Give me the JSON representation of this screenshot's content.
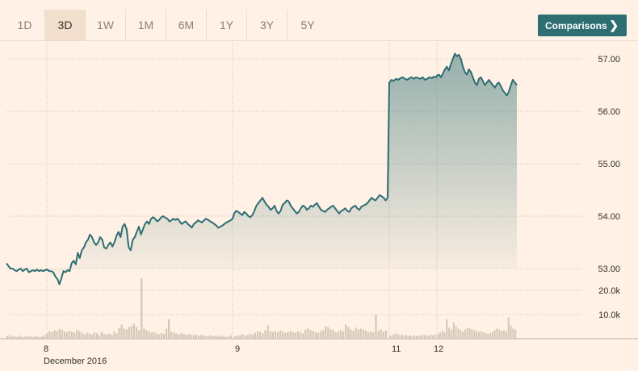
{
  "range_tabs": [
    {
      "label": "1D",
      "active": false
    },
    {
      "label": "3D",
      "active": true
    },
    {
      "label": "1W",
      "active": false
    },
    {
      "label": "1M",
      "active": false
    },
    {
      "label": "6M",
      "active": false
    },
    {
      "label": "1Y",
      "active": false
    },
    {
      "label": "3Y",
      "active": false
    },
    {
      "label": "5Y",
      "active": false
    }
  ],
  "comparisons": {
    "label": "Comparisons",
    "icon": "chevron-right-icon"
  },
  "colors": {
    "line": "#2e6e72",
    "fill": "#2e6e72",
    "volume": "#d6c6b6",
    "grid": "#cfc2b5"
  },
  "chart_data": {
    "type": "line",
    "price_axis": {
      "ticks": [
        "57.00",
        "56.00",
        "55.00",
        "54.00",
        "53.00"
      ],
      "range": [
        52.85,
        57.3
      ]
    },
    "volume_axis": {
      "ticks": [
        "20.0k",
        "10.0k"
      ],
      "range": [
        0,
        27000
      ]
    },
    "x_labels": [
      {
        "label": "8",
        "sub": "December 2016"
      },
      {
        "label": "9",
        "sub": ""
      },
      {
        "label": "11",
        "sub": ""
      },
      {
        "label": "12",
        "sub": ""
      }
    ],
    "sessions": [
      {
        "day": "8",
        "prices": [
          53.1,
          53.05,
          53.0,
          53.0,
          52.97,
          52.95,
          52.98,
          53.0,
          52.95,
          52.98,
          53.0,
          52.93,
          52.95,
          52.97,
          52.95,
          52.98,
          52.95,
          52.97,
          52.95,
          52.97,
          52.98,
          52.95,
          52.95,
          52.93,
          52.85,
          52.8,
          52.7,
          52.82,
          52.95,
          52.93,
          52.97,
          52.95,
          53.1,
          53.15,
          53.08,
          53.3,
          53.2,
          53.35,
          53.4,
          53.5,
          53.55,
          53.65,
          53.6,
          53.5,
          53.45,
          53.5,
          53.6,
          53.55,
          53.4,
          53.38,
          53.45,
          53.5,
          53.42,
          53.5,
          53.62,
          53.7,
          53.6,
          53.8,
          53.85,
          53.75,
          53.4,
          53.35,
          53.55,
          53.6,
          53.7,
          53.8,
          53.65,
          53.75,
          53.85,
          53.9,
          53.85,
          53.95,
          53.98,
          53.95,
          53.9,
          53.93,
          53.98,
          54.0,
          53.97,
          53.95,
          53.9,
          53.92,
          53.95,
          53.93,
          53.95,
          53.9,
          53.85,
          53.88,
          53.9,
          53.85,
          53.82,
          53.78,
          53.85,
          53.88,
          53.92,
          53.9,
          53.88,
          53.92,
          53.95,
          53.93,
          53.9,
          53.88,
          53.85,
          53.82,
          53.78,
          53.8,
          53.82,
          53.85,
          53.88,
          53.9,
          53.92,
          53.95
        ]
      },
      {
        "day": "9",
        "prices": [
          54.05,
          54.1,
          54.08,
          54.05,
          54.02,
          54.08,
          54.05,
          54.0,
          53.98,
          54.02,
          54.1,
          54.2,
          54.25,
          54.3,
          54.35,
          54.28,
          54.22,
          54.18,
          54.12,
          54.15,
          54.2,
          54.1,
          54.05,
          54.1,
          54.22,
          54.25,
          54.3,
          54.28,
          54.2,
          54.15,
          54.1,
          54.05,
          54.08,
          54.15,
          54.2,
          54.18,
          54.12,
          54.15,
          54.2,
          54.18,
          54.22,
          54.25,
          54.18,
          54.12,
          54.1,
          54.08,
          54.12,
          54.15,
          54.18,
          54.2,
          54.15,
          54.1,
          54.05,
          54.1,
          54.12,
          54.15,
          54.1,
          54.08,
          54.15,
          54.18,
          54.2,
          54.15,
          54.12,
          54.18,
          54.2,
          54.22,
          54.25,
          54.3,
          54.35,
          54.32,
          54.3,
          54.35,
          54.4,
          54.38,
          54.35,
          54.3,
          54.35
        ]
      },
      {
        "day": "11",
        "prices": [
          56.55,
          56.6,
          56.58,
          56.62,
          56.6,
          56.63,
          56.65,
          56.62,
          56.6,
          56.63,
          56.65,
          56.62,
          56.65,
          56.63,
          56.62,
          56.65,
          56.6,
          56.62,
          56.65,
          56.63,
          56.66,
          56.65
        ]
      },
      {
        "day": "12",
        "prices": [
          56.68,
          56.7,
          56.65,
          56.72,
          56.8,
          56.85,
          56.78,
          56.9,
          57.0,
          57.1,
          57.05,
          57.08,
          57.0,
          56.85,
          56.75,
          56.7,
          56.8,
          56.75,
          56.65,
          56.55,
          56.5,
          56.62,
          56.65,
          56.58,
          56.5,
          56.55,
          56.6,
          56.55,
          56.5,
          56.45,
          56.52,
          56.55,
          56.48,
          56.4,
          56.35,
          56.3,
          56.38,
          56.5,
          56.6,
          56.55,
          56.5
        ]
      }
    ],
    "volumes": [
      {
        "day": "8",
        "values": [
          1200,
          1500,
          900,
          1100,
          800,
          1300,
          700,
          900,
          1200,
          1000,
          800,
          1100,
          900,
          700,
          1000,
          1500,
          2200,
          3100,
          2800,
          3500,
          3200,
          4100,
          3800,
          3000,
          2700,
          3300,
          2900,
          2500,
          3600,
          3100,
          2600,
          1900,
          2400,
          2100,
          1800,
          2700,
          2300,
          1500,
          2800,
          2000,
          1900,
          2200,
          1600,
          3000,
          2200,
          4500,
          5800,
          4200,
          3800,
          4900,
          5200,
          6100,
          4800,
          3600,
          25000,
          4200,
          3500,
          3100,
          2500,
          2800,
          2200,
          1800,
          2400,
          2000,
          4100,
          8000,
          2900,
          2500,
          2100,
          1800,
          2300,
          2000,
          1600,
          1900,
          1700,
          1500,
          1800,
          1300,
          1600,
          1400,
          1100,
          1200,
          1500,
          1000,
          1300,
          900,
          1100,
          1200,
          800,
          1000,
          1300
        ]
      },
      {
        "day": "9",
        "values": [
          1000,
          1300,
          1500,
          1800,
          1200,
          1600,
          2100,
          1800,
          2500,
          3100,
          2800,
          2200,
          3500,
          5500,
          3200,
          2800,
          3100,
          2600,
          3400,
          2900,
          2400,
          2800,
          3200,
          2700,
          2500,
          3000,
          2600,
          2200,
          3800,
          4200,
          3600,
          3100,
          2700,
          2400,
          3100,
          3500,
          5200,
          4800,
          3900,
          3500,
          2600,
          2900,
          3600,
          3100,
          5800,
          4900,
          3800,
          3300,
          4600,
          3800,
          4200,
          3900,
          3400,
          2700,
          3000,
          2600,
          10000,
          3300,
          3800,
          2900,
          3500
        ]
      },
      {
        "day": "11",
        "values": [
          1200,
          1500,
          1800,
          2200,
          1900,
          1400,
          1700,
          1300,
          1600,
          1100,
          1500,
          1000,
          1300,
          1100,
          1400,
          1200,
          1700,
          1500,
          1300,
          1200,
          1600,
          1400,
          1800
        ]
      },
      {
        "day": "12",
        "values": [
          1800,
          2600,
          3200,
          2700,
          8000,
          4500,
          3800,
          6800,
          5100,
          4200,
          3600,
          2900,
          3800,
          4600,
          4200,
          3800,
          3500,
          3200,
          2800,
          3100,
          2600,
          2300,
          2000,
          2400,
          2800,
          3500,
          4200,
          3800,
          3200,
          3500,
          3000,
          8800,
          5500,
          4200,
          3800
        ]
      }
    ]
  }
}
